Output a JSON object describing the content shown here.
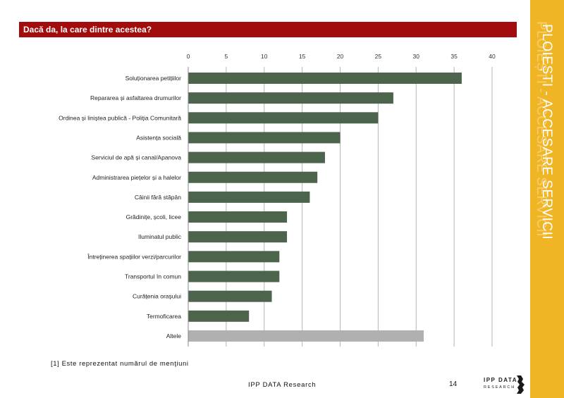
{
  "header": {
    "title": "Dacă da, la care dintre acestea?"
  },
  "sidebar": {
    "vertical_title": "PLOIEȘTI - ACCESARE SERVICII"
  },
  "footer": {
    "footnote": "[1] Este reprezentat numărul de menţiuni",
    "brand": "IPP DATA Research",
    "page_number": "14",
    "logo_top": "IPP DATA",
    "logo_bottom": "RESEARCH"
  },
  "colors": {
    "title_bar": "#a30c0c",
    "side_band": "#efb524",
    "bar": "#4c634c",
    "bar_other": "#b0b0b0",
    "grid": "#b5b5b5"
  },
  "icons": {
    "logo": "ipp-data-research-logo"
  },
  "chart_data": {
    "type": "bar",
    "orientation": "horizontal",
    "title": "Dacă da, la care dintre acestea?",
    "xlabel": "",
    "ylabel": "",
    "xlim": [
      0,
      40
    ],
    "ticks": [
      0,
      5,
      10,
      15,
      20,
      25,
      30,
      35,
      40
    ],
    "grid": true,
    "categories": [
      "Soluționarea petițiilor",
      "Repararea și asfaltarea drumurilor",
      "Ordinea și liniștea publică - Poliția Comunitară",
      "Asistența socială",
      "Serviciul de apă și canal/Apanova",
      "Administrarea piețelor și a halelor",
      "Câinii fără stăpân",
      "Grădinițe, școli, licee",
      "Iluminatul public",
      "Întreținerea spațiilor verzi/parcurilor",
      "Transportul în comun",
      "Curățenia orașului",
      "Termoficarea",
      "Altele"
    ],
    "values": [
      36,
      27,
      25,
      20,
      18,
      17,
      16,
      13,
      13,
      12,
      12,
      11,
      8,
      31
    ]
  }
}
